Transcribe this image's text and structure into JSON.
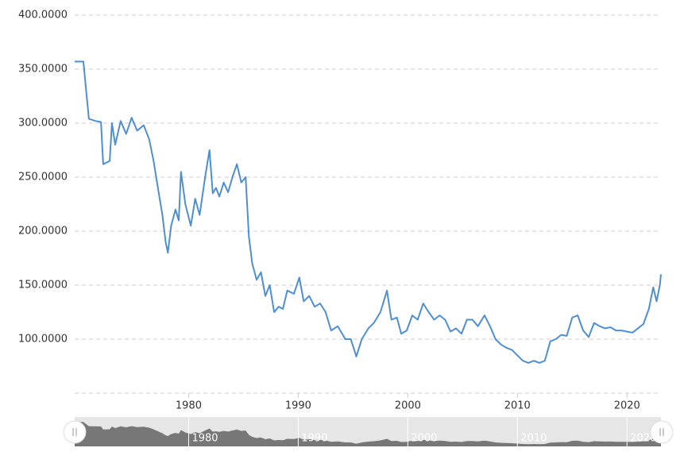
{
  "chart_data": {
    "type": "line",
    "x": [
      1969.6,
      1970.4,
      1970.6,
      1970.9,
      1971.5,
      1972.0,
      1972.2,
      1972.8,
      1973.0,
      1973.3,
      1973.8,
      1974.3,
      1974.8,
      1975.3,
      1975.9,
      1976.4,
      1976.8,
      1977.2,
      1977.6,
      1977.9,
      1978.1,
      1978.4,
      1978.8,
      1979.1,
      1979.3,
      1979.7,
      1980.2,
      1980.6,
      1981.0,
      1981.5,
      1981.9,
      1982.2,
      1982.5,
      1982.8,
      1983.2,
      1983.6,
      1984.0,
      1984.4,
      1984.8,
      1985.2,
      1985.5,
      1985.8,
      1986.2,
      1986.6,
      1987.0,
      1987.4,
      1987.8,
      1988.2,
      1988.6,
      1989.0,
      1989.6,
      1990.1,
      1990.5,
      1991.0,
      1991.5,
      1992.0,
      1992.5,
      1993.0,
      1993.6,
      1994.3,
      1994.8,
      1995.3,
      1995.8,
      1996.4,
      1996.9,
      1997.5,
      1998.1,
      1998.5,
      1999.0,
      1999.4,
      1999.9,
      2000.4,
      2000.9,
      2001.4,
      2001.9,
      2002.4,
      2002.9,
      2003.4,
      2003.9,
      2004.4,
      2004.9,
      2005.4,
      2005.9,
      2006.4,
      2007.0,
      2007.5,
      2008.0,
      2008.5,
      2009.0,
      2009.5,
      2010.0,
      2010.5,
      2011.0,
      2011.5,
      2012.0,
      2012.5,
      2013.0,
      2013.5,
      2014.0,
      2014.5,
      2015.0,
      2015.5,
      2016.0,
      2016.5,
      2017.0,
      2017.5,
      2018.0,
      2018.5,
      2019.0,
      2019.5,
      2020.0,
      2020.5,
      2021.0,
      2021.5,
      2022.0,
      2022.4,
      2022.7,
      2023.0,
      2023.1
    ],
    "series": [
      {
        "color": "#4f8fd0",
        "values": [
          357,
          357,
          335,
          304,
          302,
          301,
          262,
          265,
          300,
          280,
          302,
          290,
          305,
          293,
          298,
          285,
          265,
          240,
          215,
          190,
          180,
          205,
          220,
          210,
          255,
          225,
          205,
          230,
          215,
          250,
          275,
          235,
          240,
          232,
          245,
          236,
          250,
          262,
          245,
          250,
          195,
          170,
          155,
          162,
          140,
          150,
          125,
          130,
          128,
          145,
          142,
          157,
          135,
          140,
          130,
          133,
          125,
          108,
          112,
          100,
          100,
          84,
          100,
          110,
          115,
          125,
          145,
          118,
          120,
          105,
          108,
          122,
          118,
          133,
          125,
          118,
          122,
          118,
          107,
          110,
          105,
          118,
          118,
          112,
          122,
          112,
          100,
          95,
          92,
          90,
          85,
          80,
          78,
          80,
          78,
          80,
          98,
          100,
          104,
          103,
          120,
          122,
          108,
          102,
          115,
          112,
          110,
          111,
          108,
          108,
          107,
          106,
          110,
          114,
          128,
          148,
          135,
          150,
          160
        ]
      }
    ],
    "xlim": [
      1969.6,
      2023.1
    ],
    "xticks": [
      1980,
      1990,
      2000,
      2010,
      2020
    ],
    "ylim": [
      50,
      400
    ],
    "yticks": [
      {
        "value": 100,
        "label": "100.0000"
      },
      {
        "value": 150,
        "label": "150.0000"
      },
      {
        "value": 200,
        "label": "200.0000"
      },
      {
        "value": 250,
        "label": "250.0000"
      },
      {
        "value": 300,
        "label": "300.0000"
      },
      {
        "value": 350,
        "label": "350.0000"
      },
      {
        "value": 400,
        "label": "400.0000"
      }
    ],
    "grid": true
  }
}
